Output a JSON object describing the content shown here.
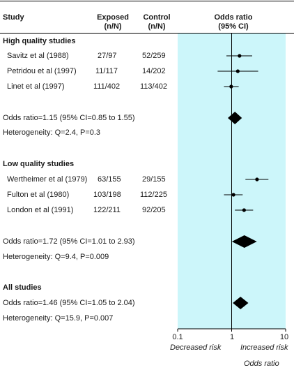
{
  "headers": {
    "study": "Study",
    "exposed": "Exposed",
    "exposed_sub": "(n/N)",
    "control": "Control",
    "control_sub": "(n/N)",
    "effect": "Odds ratio",
    "effect_sub": "(95% CI)"
  },
  "groups": [
    {
      "title": "High quality studies",
      "summary": "Odds ratio=1.15 (95% CI=0.85 to 1.55)",
      "heterogeneity": "Heterogeneity: Q=2.4, P=0.3"
    },
    {
      "title": "Low quality studies",
      "summary": "Odds ratio=1.72 (95% CI=1.01 to 2.93)",
      "heterogeneity": "Heterogeneity: Q=9.4, P=0.009"
    },
    {
      "title": "All studies",
      "summary": "Odds ratio=1.46 (95% CI=1.05 to 2.04)",
      "heterogeneity": "Heterogeneity: Q=15.9, P=0.007"
    }
  ],
  "studies": [
    {
      "name": "Savitz et al (1988)",
      "exposed": "27/97",
      "control": "52/259"
    },
    {
      "name": "Petridou et al (1997)",
      "exposed": "11/117",
      "control": "14/202"
    },
    {
      "name": "Linet et al (1997)",
      "exposed": "111/402",
      "control": "113/402"
    },
    {
      "name": "Wertheimer et al (1979)",
      "exposed": "63/155",
      "control": "29/155"
    },
    {
      "name": "Fulton et al (1980)",
      "exposed": "103/198",
      "control": "112/225"
    },
    {
      "name": "London et al (1991)",
      "exposed": "122/211",
      "control": "92/205"
    }
  ],
  "axis": {
    "ticks": [
      "0.1",
      "1",
      "10"
    ],
    "left_label": "Decreased risk",
    "right_label": "Increased risk",
    "title": "Odds ratio"
  },
  "chart_data": {
    "type": "forest",
    "scale": "log",
    "xlim": [
      0.1,
      10
    ],
    "reference": 1,
    "panel_color": "#ccf6fa",
    "studies": [
      {
        "label": "Savitz et al (1988)",
        "or": 1.4,
        "lo": 0.8,
        "hi": 2.4
      },
      {
        "label": "Petridou et al (1997)",
        "or": 1.3,
        "lo": 0.55,
        "hi": 3.1
      },
      {
        "label": "Linet et al (1997)",
        "or": 0.98,
        "lo": 0.72,
        "hi": 1.35
      },
      {
        "label": "Wertheimer et al (1979)",
        "or": 2.95,
        "lo": 1.8,
        "hi": 4.8
      },
      {
        "label": "Fulton et al (1980)",
        "or": 1.08,
        "lo": 0.72,
        "hi": 1.6
      },
      {
        "label": "London et al (1991)",
        "or": 1.7,
        "lo": 1.15,
        "hi": 2.5
      }
    ],
    "pooled": [
      {
        "label": "High quality studies",
        "or": 1.15,
        "lo": 0.85,
        "hi": 1.55
      },
      {
        "label": "Low quality studies",
        "or": 1.72,
        "lo": 1.01,
        "hi": 2.93
      },
      {
        "label": "All studies",
        "or": 1.46,
        "lo": 1.05,
        "hi": 2.04
      }
    ]
  }
}
